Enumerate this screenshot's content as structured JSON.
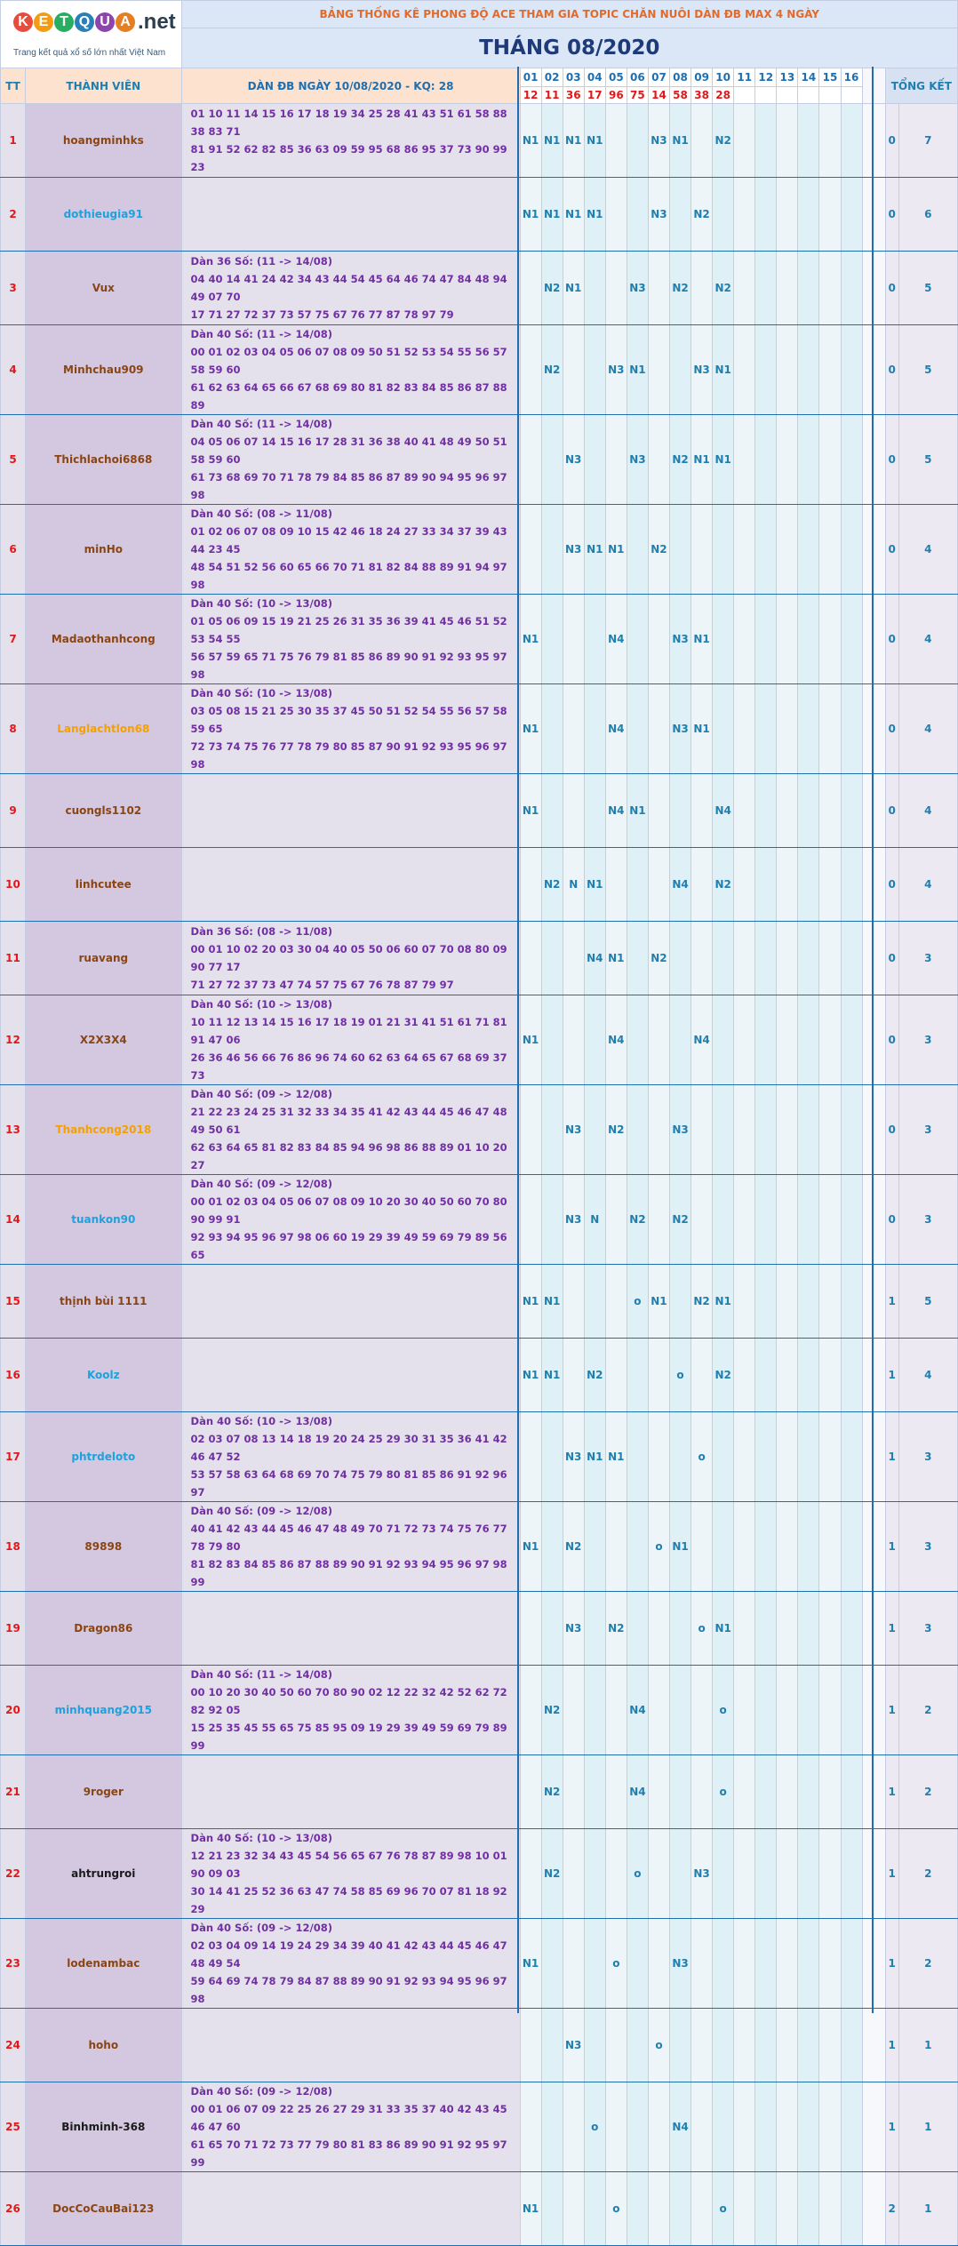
{
  "logo": {
    "letters": [
      {
        "ch": "K",
        "color": "#e74c3c"
      },
      {
        "ch": "E",
        "color": "#f39c12"
      },
      {
        "ch": "T",
        "color": "#27ae60"
      },
      {
        "ch": "Q",
        "color": "#2980b9"
      },
      {
        "ch": "U",
        "color": "#8e44ad"
      },
      {
        "ch": "A",
        "color": "#e67e22"
      }
    ],
    "suffix": ".net",
    "tagline": "Trang kết quả xổ số lớn nhất Việt Nam"
  },
  "subtitle": "BẢNG THỐNG KÊ PHONG ĐỘ ACE THAM GIA TOPIC CHĂN NUÔI DÀN ĐB MAX 4 NGÀY",
  "month_title": "THÁNG 08/2020",
  "headers": {
    "tt": "TT",
    "member": "THÀNH VIÊN",
    "dan": "DÀN ĐB NGÀY 10/08/2020 - KQ: 28",
    "summary": "TỔNG KẾT"
  },
  "days": [
    "01",
    "02",
    "03",
    "04",
    "05",
    "06",
    "07",
    "08",
    "09",
    "10",
    "11",
    "12",
    "13",
    "14",
    "15",
    "16"
  ],
  "results": [
    "12",
    "11",
    "36",
    "17",
    "96",
    "75",
    "14",
    "58",
    "38",
    "28",
    "",
    "",
    "",
    "",
    "",
    ""
  ],
  "colors": {
    "brown": "#8b4513",
    "blue": "#1ea1dc",
    "orange": "#f5a000",
    "black": "#1a1a1a"
  },
  "rows": [
    {
      "tt": "1",
      "name": "hoangminhks",
      "color": "brown",
      "dan": [
        "",
        "01 10 11 14 15 16 17 18 19 34 25 28 41 43 51 61 58 88 38 83 71",
        "81 91 52 62 82 85 36 63 09 59 95 68 86 95 37 73 90 99 23"
      ],
      "marks": [
        "N1",
        "N1",
        "N1",
        "N1",
        "",
        "",
        "N3",
        "N1",
        "",
        "N2",
        "",
        "",
        "",
        "",
        "",
        ""
      ],
      "t1": "0",
      "t2": "7"
    },
    {
      "tt": "2",
      "name": "dothieugia91",
      "color": "blue",
      "dan": [
        "",
        "",
        ""
      ],
      "marks": [
        "N1",
        "N1",
        "N1",
        "N1",
        "",
        "",
        "N3",
        "",
        "N2",
        "",
        "",
        "",
        "",
        "",
        "",
        ""
      ],
      "t1": "0",
      "t2": "6"
    },
    {
      "tt": "3",
      "name": "Vux",
      "color": "brown",
      "dan": [
        "Dàn 36 Số: (11 -> 14/08)",
        "04 40 14 41 24 42 34 43 44 54 45 64 46 74 47 84 48 94 49 07 70",
        "17 71 27 72 37 73 57 75 67 76 77 87 78 97 79"
      ],
      "marks": [
        "",
        "N2",
        "N1",
        "",
        "",
        "N3",
        "",
        "N2",
        "",
        "N2",
        "",
        "",
        "",
        "",
        "",
        ""
      ],
      "t1": "0",
      "t2": "5"
    },
    {
      "tt": "4",
      "name": "Minhchau909",
      "color": "brown",
      "dan": [
        "Dàn 40 Số: (11 -> 14/08)",
        "00 01 02 03 04 05 06 07 08 09 50 51 52 53 54 55 56 57 58 59 60",
        "61 62 63 64 65 66 67 68 69 80 81 82 83 84 85 86 87 88 89"
      ],
      "marks": [
        "",
        "N2",
        "",
        "",
        "N3",
        "N1",
        "",
        "",
        "N3",
        "N1",
        "",
        "",
        "",
        "",
        "",
        ""
      ],
      "t1": "0",
      "t2": "5"
    },
    {
      "tt": "5",
      "name": "Thichlachoi6868",
      "color": "brown",
      "dan": [
        "Dàn 40 Số: (11 -> 14/08)",
        "04 05 06 07 14 15 16 17 28 31 36 38 40 41 48 49 50 51 58 59 60",
        "61 73 68 69 70 71 78 79 84 85 86 87 89 90 94 95 96 97 98"
      ],
      "marks": [
        "",
        "",
        "N3",
        "",
        "",
        "N3",
        "",
        "N2",
        "N1",
        "N1",
        "",
        "",
        "",
        "",
        "",
        ""
      ],
      "t1": "0",
      "t2": "5"
    },
    {
      "tt": "6",
      "name": "minHo",
      "color": "brown",
      "dan": [
        "Dàn 40 Số: (08 -> 11/08)",
        "01 02 06 07 08 09 10 15 42 46 18 24 27 33 34 37 39 43 44 23 45",
        "48 54 51 52 56 60 65 66 70 71 81 82 84 88 89 91 94 97 98"
      ],
      "marks": [
        "",
        "",
        "N3",
        "N1",
        "N1",
        "",
        "N2",
        "",
        "",
        "",
        "",
        "",
        "",
        "",
        "",
        ""
      ],
      "t1": "0",
      "t2": "4"
    },
    {
      "tt": "7",
      "name": "Madaothanhcong",
      "color": "brown",
      "dan": [
        "Dàn 40 Số: (10 -> 13/08)",
        "01 05 06 09 15 19 21 25 26 31 35 36 39 41 45 46 51 52 53 54 55",
        "56 57 59 65 71 75 76 79 81 85 86 89 90 91 92 93 95 97 98"
      ],
      "marks": [
        "N1",
        "",
        "",
        "",
        "N4",
        "",
        "",
        "N3",
        "N1",
        "",
        "",
        "",
        "",
        "",
        "",
        ""
      ],
      "t1": "0",
      "t2": "4"
    },
    {
      "tt": "8",
      "name": "Langlachtlon68",
      "color": "orange",
      "dan": [
        "Dàn 40 Số: (10 -> 13/08)",
        "03 05 08 15 21 25 30 35 37 45 50 51 52 54 55 56 57 58 59 65",
        "72 73 74 75 76 77 78 79 80 85 87 90 91 92 93 95 96 97 98"
      ],
      "marks": [
        "N1",
        "",
        "",
        "",
        "N4",
        "",
        "",
        "N3",
        "N1",
        "",
        "",
        "",
        "",
        "",
        "",
        ""
      ],
      "t1": "0",
      "t2": "4"
    },
    {
      "tt": "9",
      "name": "cuongls1102",
      "color": "brown",
      "dan": [
        "",
        "",
        ""
      ],
      "marks": [
        "N1",
        "",
        "",
        "",
        "N4",
        "N1",
        "",
        "",
        "",
        "N4",
        "",
        "",
        "",
        "",
        "",
        ""
      ],
      "t1": "0",
      "t2": "4"
    },
    {
      "tt": "10",
      "name": "linhcutee",
      "color": "brown",
      "dan": [
        "",
        "",
        ""
      ],
      "marks": [
        "",
        "N2",
        "N",
        "N1",
        "",
        "",
        "",
        "N4",
        "",
        "N2",
        "",
        "",
        "",
        "",
        "",
        ""
      ],
      "t1": "0",
      "t2": "4"
    },
    {
      "tt": "11",
      "name": "ruavang",
      "color": "brown",
      "dan": [
        "Dàn 36 Số: (08 -> 11/08)",
        "00 01 10 02 20 03 30 04 40 05 50 06 60 07 70 08 80 09 90 77 17",
        "71 27 72 37 73 47 74 57 75 67 76 78 87 79 97"
      ],
      "marks": [
        "",
        "",
        "",
        "N4",
        "N1",
        "",
        "N2",
        "",
        "",
        "",
        "",
        "",
        "",
        "",
        "",
        ""
      ],
      "t1": "0",
      "t2": "3"
    },
    {
      "tt": "12",
      "name": "X2X3X4",
      "color": "brown",
      "dan": [
        "Dàn 40 Số: (10 -> 13/08)",
        "10 11 12 13 14 15 16 17 18 19 01 21 31 41 51 61 71 81 91 47 06",
        "26 36 46 56 66 76 86 96 74 60 62 63 64 65 67 68 69 37 73"
      ],
      "marks": [
        "N1",
        "",
        "",
        "",
        "N4",
        "",
        "",
        "",
        "N4",
        "",
        "",
        "",
        "",
        "",
        "",
        ""
      ],
      "t1": "0",
      "t2": "3"
    },
    {
      "tt": "13",
      "name": "Thanhcong2018",
      "color": "orange",
      "dan": [
        "Dàn 40 Số: (09 -> 12/08)",
        "21 22 23 24 25 31 32 33 34 35 41 42 43 44 45 46 47 48 49 50 61",
        "62 63 64 65 81 82 83 84 85 94 96 98 86 88 89 01 10 20 27"
      ],
      "marks": [
        "",
        "",
        "N3",
        "",
        "N2",
        "",
        "",
        "N3",
        "",
        "",
        "",
        "",
        "",
        "",
        "",
        ""
      ],
      "t1": "0",
      "t2": "3"
    },
    {
      "tt": "14",
      "name": "tuankon90",
      "color": "blue",
      "dan": [
        "Dàn 40 Số: (09 -> 12/08)",
        "00 01 02 03 04 05 06 07 08 09 10 20 30 40 50 60 70 80 90 99 91",
        "92 93 94 95 96 97 98 06 60 19 29 39 49 59 69 79 89 56 65"
      ],
      "marks": [
        "",
        "",
        "N3",
        "N",
        "",
        "N2",
        "",
        "N2",
        "",
        "",
        "",
        "",
        "",
        "",
        "",
        ""
      ],
      "t1": "0",
      "t2": "3"
    },
    {
      "tt": "15",
      "name": "thịnh bùi 1111",
      "color": "brown",
      "dan": [
        "",
        "",
        ""
      ],
      "marks": [
        "N1",
        "N1",
        "",
        "",
        "",
        "o",
        "N1",
        "",
        "N2",
        "N1",
        "",
        "",
        "",
        "",
        "",
        ""
      ],
      "t1": "1",
      "t2": "5"
    },
    {
      "tt": "16",
      "name": "Koolz",
      "color": "blue",
      "dan": [
        "",
        "",
        ""
      ],
      "marks": [
        "N1",
        "N1",
        "",
        "N2",
        "",
        "",
        "",
        "o",
        "",
        "N2",
        "",
        "",
        "",
        "",
        "",
        ""
      ],
      "t1": "1",
      "t2": "4"
    },
    {
      "tt": "17",
      "name": "phtrdeloto",
      "color": "blue",
      "dan": [
        "Dàn 40 Số: (10 -> 13/08)",
        "02 03 07 08 13 14 18 19 20 24 25 29 30 31 35 36 41 42 46 47 52",
        "53 57 58 63 64 68 69 70 74 75 79 80 81 85 86 91 92 96 97"
      ],
      "marks": [
        "",
        "",
        "N3",
        "N1",
        "N1",
        "",
        "",
        "",
        "o",
        "",
        "",
        "",
        "",
        "",
        "",
        ""
      ],
      "t1": "1",
      "t2": "3"
    },
    {
      "tt": "18",
      "name": "89898",
      "color": "brown",
      "dan": [
        "Dàn 40 Số: (09 -> 12/08)",
        "40 41 42 43 44 45 46 47 48 49 70 71 72 73 74 75 76 77 78 79 80",
        "81 82 83 84 85 86 87 88 89 90 91 92 93 94 95 96 97 98 99"
      ],
      "marks": [
        "N1",
        "",
        "N2",
        "",
        "",
        "",
        "o",
        "N1",
        "",
        "",
        "",
        "",
        "",
        "",
        "",
        ""
      ],
      "t1": "1",
      "t2": "3"
    },
    {
      "tt": "19",
      "name": "Dragon86",
      "color": "brown",
      "dan": [
        "",
        "",
        ""
      ],
      "marks": [
        "",
        "",
        "N3",
        "",
        "N2",
        "",
        "",
        "",
        "o",
        "N1",
        "",
        "",
        "",
        "",
        "",
        ""
      ],
      "t1": "1",
      "t2": "3"
    },
    {
      "tt": "20",
      "name": "minhquang2015",
      "color": "blue",
      "dan": [
        "Dàn 40 Số: (11 -> 14/08)",
        "00 10 20 30 40 50 60 70 80 90 02 12 22 32 42 52 62 72 82 92 05",
        "15 25 35 45 55 65 75 85 95 09 19 29 39 49 59 69 79 89 99"
      ],
      "marks": [
        "",
        "N2",
        "",
        "",
        "",
        "N4",
        "",
        "",
        "",
        "o",
        "",
        "",
        "",
        "",
        "",
        ""
      ],
      "t1": "1",
      "t2": "2"
    },
    {
      "tt": "21",
      "name": "9roger",
      "color": "brown",
      "dan": [
        "",
        "",
        ""
      ],
      "marks": [
        "",
        "N2",
        "",
        "",
        "",
        "N4",
        "",
        "",
        "",
        "o",
        "",
        "",
        "",
        "",
        "",
        ""
      ],
      "t1": "1",
      "t2": "2"
    },
    {
      "tt": "22",
      "name": "ahtrungroi",
      "color": "black",
      "dan": [
        "Dàn 40 Số: (10 -> 13/08)",
        "12 21 23 32 34 43 45 54 56 65 67 76 78 87 89 98 10 01 90 09 03",
        "30 14 41 25 52 36 63 47 74 58 85 69 96 70 07 81 18 92 29"
      ],
      "marks": [
        "",
        "N2",
        "",
        "",
        "",
        "o",
        "",
        "",
        "N3",
        "",
        "",
        "",
        "",
        "",
        "",
        ""
      ],
      "t1": "1",
      "t2": "2"
    },
    {
      "tt": "23",
      "name": "lodenambac",
      "color": "brown",
      "dan": [
        "Dàn 40 Số: (09 -> 12/08)",
        "02 03 04 09 14 19 24 29 34 39 40 41 42 43 44 45 46 47 48 49 54",
        "59 64 69 74 78 79 84 87 88 89 90 91 92 93 94 95 96 97 98"
      ],
      "marks": [
        "N1",
        "",
        "",
        "",
        "o",
        "",
        "",
        "N3",
        "",
        "",
        "",
        "",
        "",
        "",
        "",
        ""
      ],
      "t1": "1",
      "t2": "2"
    },
    {
      "tt": "24",
      "name": "hoho",
      "color": "brown",
      "dan": [
        "",
        "",
        ""
      ],
      "marks": [
        "",
        "",
        "N3",
        "",
        "",
        "",
        "o",
        "",
        "",
        "",
        "",
        "",
        "",
        "",
        "",
        ""
      ],
      "t1": "1",
      "t2": "1"
    },
    {
      "tt": "25",
      "name": "Binhminh-368",
      "color": "black",
      "dan": [
        "Dàn 40 Số: (09 -> 12/08)",
        "00 01 06 07 09 22 25 26 27 29 31 33 35 37 40 42 43 45 46 47 60",
        "61 65 70 71 72 73 77 79 80 81 83 86 89 90 91 92 95 97 99"
      ],
      "marks": [
        "",
        "",
        "",
        "o",
        "",
        "",
        "",
        "N4",
        "",
        "",
        "",
        "",
        "",
        "",
        "",
        ""
      ],
      "t1": "1",
      "t2": "1"
    },
    {
      "tt": "26",
      "name": "DocCoCauBai123",
      "color": "brown",
      "dan": [
        "",
        "",
        ""
      ],
      "marks": [
        "N1",
        "",
        "",
        "",
        "o",
        "",
        "",
        "",
        "",
        "o",
        "",
        "",
        "",
        "",
        "",
        ""
      ],
      "t1": "2",
      "t2": "1"
    }
  ]
}
